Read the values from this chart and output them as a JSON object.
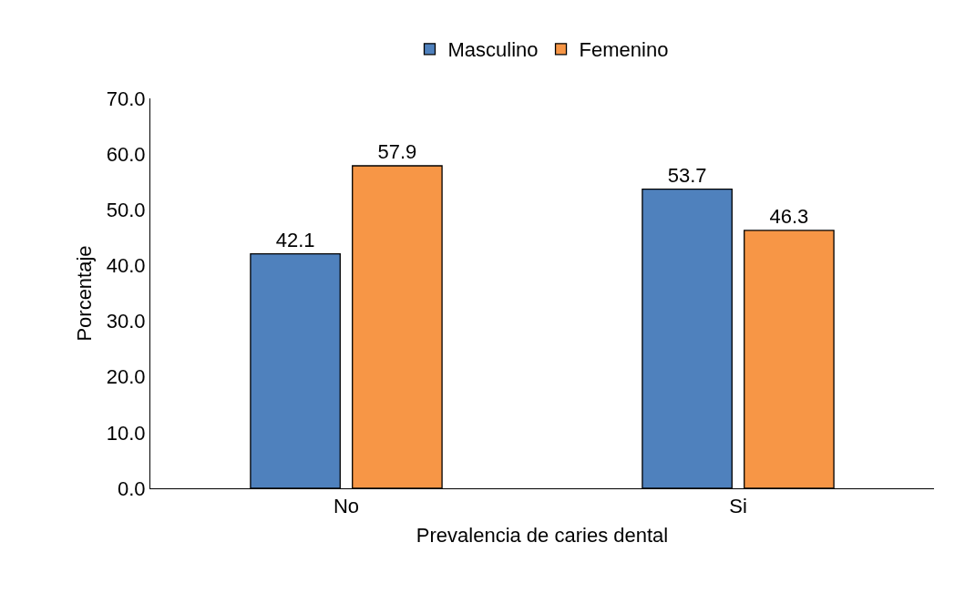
{
  "chart_data": {
    "type": "bar",
    "xlabel": "Prevalencia de caries dental",
    "ylabel": "Porcentaje",
    "categories": [
      "No",
      "Si"
    ],
    "series": [
      {
        "name": "Masculino",
        "color": "#4f81bd",
        "values": [
          42.1,
          53.7
        ]
      },
      {
        "name": "Femenino",
        "color": "#f79646",
        "values": [
          57.9,
          46.3
        ]
      }
    ],
    "ylim": [
      0,
      70
    ],
    "yticks": [
      {
        "value": 0,
        "label": "0.0"
      },
      {
        "value": 10,
        "label": "10.0"
      },
      {
        "value": 20,
        "label": "20.0"
      },
      {
        "value": 30,
        "label": "30.0"
      },
      {
        "value": 40,
        "label": "40.0"
      },
      {
        "value": 50,
        "label": "50.0"
      },
      {
        "value": 60,
        "label": "60.0"
      },
      {
        "value": 70,
        "label": "70.0"
      }
    ],
    "grid": false,
    "legend": "top",
    "data_labels": true
  }
}
